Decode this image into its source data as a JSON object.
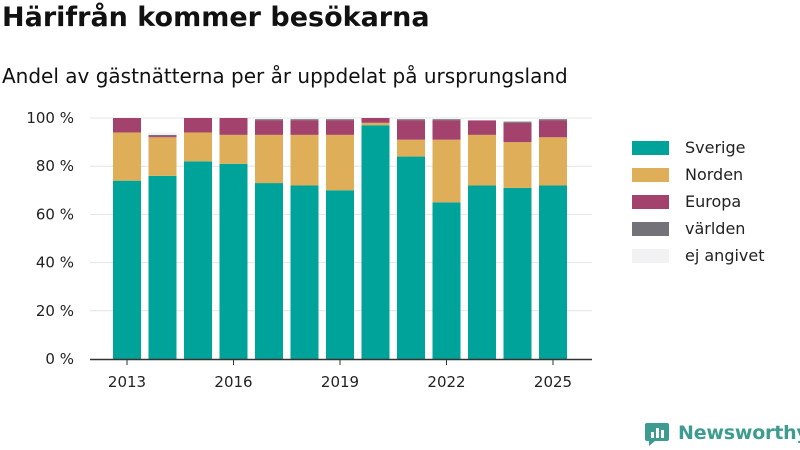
{
  "title": "Härifrån kommer besökarna",
  "subtitle": "Andel av gästnätterna per år uppdelat på ursprungsland",
  "brand": {
    "name": "Newsworthy",
    "icon": "newsworthy-logo-icon",
    "color": "#3d9c8f"
  },
  "chart_data": {
    "type": "bar",
    "stacked": true,
    "x": [
      2013,
      2014,
      2015,
      2016,
      2017,
      2018,
      2019,
      2020,
      2021,
      2022,
      2023,
      2024,
      2025
    ],
    "x_tick_labels": [
      "2013",
      "2016",
      "2019",
      "2022",
      "2025"
    ],
    "y_tick_labels": [
      "0 %",
      "20 %",
      "40 %",
      "60 %",
      "80 %",
      "100 %"
    ],
    "ylim": [
      0,
      100
    ],
    "grid": true,
    "legend_position": "right",
    "series": [
      {
        "name": "Sverige",
        "color": "#00a399",
        "values": [
          74,
          76,
          82,
          81,
          73,
          72,
          70,
          97,
          84,
          65,
          72,
          71,
          72
        ]
      },
      {
        "name": "Norden",
        "color": "#dfae59",
        "values": [
          20,
          16,
          12,
          12,
          20,
          21,
          23,
          1,
          7,
          26,
          21,
          19,
          20
        ]
      },
      {
        "name": "Europa",
        "color": "#a3426c",
        "values": [
          6,
          0.5,
          6,
          7,
          6,
          6,
          6,
          2,
          8,
          8,
          6,
          8,
          7
        ]
      },
      {
        "name": "världen",
        "color": "#737278",
        "values": [
          0,
          0.5,
          0,
          0,
          0.5,
          0.5,
          0.5,
          0,
          0.5,
          0.5,
          0,
          0.5,
          0.5
        ]
      },
      {
        "name": "ej angivet",
        "color": "#f2f1f3",
        "values": [
          0,
          1,
          0,
          0,
          0,
          0,
          0,
          0,
          0,
          0,
          0,
          0,
          0
        ]
      }
    ]
  }
}
